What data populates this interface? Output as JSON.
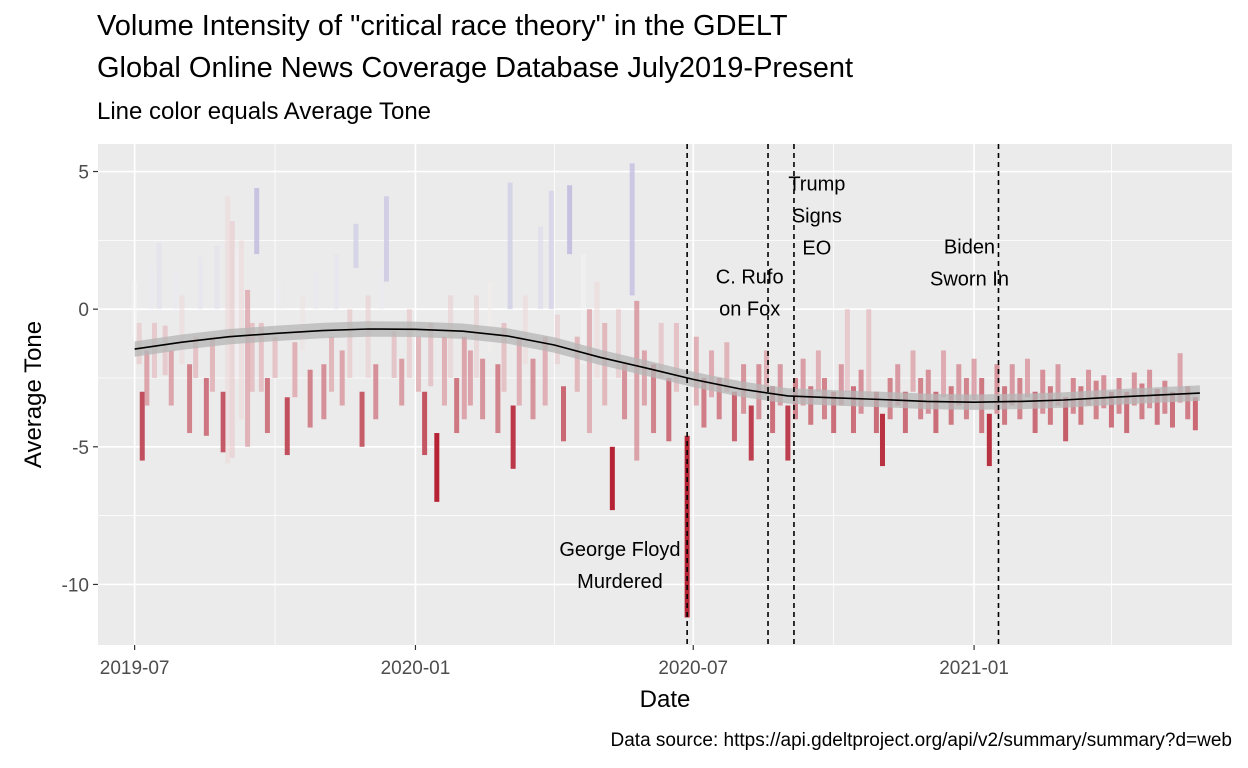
{
  "colors": {
    "panel": "#ebebeb",
    "grid_major": "#ffffff",
    "positive_tone": "#9a92cf",
    "negative_tone": "#b2182b",
    "neutral_tone": "#f7f7f7",
    "smooth_line": "#000000",
    "smooth_band": "#b5b5b5"
  },
  "chart_data": {
    "type": "bar",
    "title": "Volume Intensity of \"critical race theory\" in the GDELT\nGlobal Online News Coverage Database July2019-Present",
    "title_lines": [
      "Volume Intensity of \"critical race theory\" in the GDELT",
      "Global Online News Coverage Database July2019-Present"
    ],
    "subtitle": "Line color equals Average Tone",
    "caption": "Data source: https://api.gdeltproject.org/api/v2/summary/summary?d=web",
    "xlabel": "Date",
    "ylabel": "Average Tone",
    "xlim": [
      "2019-06-07",
      "2021-06-19"
    ],
    "ylim": [
      -12.2,
      6.0
    ],
    "x_ticks": [
      "2019-07-01",
      "2020-01-01",
      "2020-07-01",
      "2021-01-01"
    ],
    "x_tick_labels": [
      "2019-07",
      "2020-01",
      "2020-07",
      "2021-01"
    ],
    "y_ticks": [
      5,
      0,
      -5,
      -10
    ],
    "y_tick_labels": [
      "5",
      "0",
      "-5",
      "-10"
    ],
    "grid": true,
    "x_minor_ticks": [
      "2019-10-01",
      "2020-04-01",
      "2020-10-01",
      "2021-04-01"
    ],
    "y_minor_ticks": [
      2.5,
      -2.5,
      -7.5
    ],
    "bar_color_scale": {
      "low": -5,
      "mid": 0,
      "high": 5
    },
    "bars": [
      {
        "date": "2019-07-01",
        "low": -1.0,
        "high": 1.0
      },
      {
        "date": "2019-07-04",
        "low": -2.0,
        "high": -0.5
      },
      {
        "date": "2019-07-06",
        "low": -5.5,
        "high": -3.0
      },
      {
        "date": "2019-07-09",
        "low": -3.5,
        "high": -1.5
      },
      {
        "date": "2019-07-12",
        "low": 0.0,
        "high": 1.5
      },
      {
        "date": "2019-07-14",
        "low": -2.5,
        "high": -0.5
      },
      {
        "date": "2019-07-17",
        "low": 0.0,
        "high": 2.4
      },
      {
        "date": "2019-07-21",
        "low": -2.4,
        "high": -0.6
      },
      {
        "date": "2019-07-25",
        "low": -3.5,
        "high": -1.5
      },
      {
        "date": "2019-07-28",
        "low": 0.0,
        "high": 1.3
      },
      {
        "date": "2019-08-01",
        "low": -2.0,
        "high": 0.5
      },
      {
        "date": "2019-08-06",
        "low": -4.5,
        "high": -2.0
      },
      {
        "date": "2019-08-10",
        "low": -2.5,
        "high": -1.0
      },
      {
        "date": "2019-08-13",
        "low": 0.0,
        "high": 1.9
      },
      {
        "date": "2019-08-17",
        "low": -4.6,
        "high": -2.5
      },
      {
        "date": "2019-08-21",
        "low": -3.0,
        "high": -1.0
      },
      {
        "date": "2019-08-24",
        "low": 0.0,
        "high": 2.3
      },
      {
        "date": "2019-08-28",
        "low": -5.2,
        "high": -3.0
      },
      {
        "date": "2019-08-31",
        "low": -5.6,
        "high": 4.1
      },
      {
        "date": "2019-09-03",
        "low": -5.4,
        "high": 3.2
      },
      {
        "date": "2019-09-06",
        "low": -2.5,
        "high": 2.2
      },
      {
        "date": "2019-09-09",
        "low": -4.0,
        "high": 2.5
      },
      {
        "date": "2019-09-13",
        "low": -5.0,
        "high": 0.7
      },
      {
        "date": "2019-09-16",
        "low": -3.0,
        "high": -0.5
      },
      {
        "date": "2019-09-19",
        "low": 2.0,
        "high": 4.4
      },
      {
        "date": "2019-09-22",
        "low": -3.0,
        "high": -0.5
      },
      {
        "date": "2019-09-26",
        "low": -4.5,
        "high": -2.5
      },
      {
        "date": "2019-10-01",
        "low": -2.5,
        "high": -1.0
      },
      {
        "date": "2019-10-04",
        "low": 0.0,
        "high": 1.0
      },
      {
        "date": "2019-10-09",
        "low": -5.3,
        "high": -3.2
      },
      {
        "date": "2019-10-14",
        "low": -3.2,
        "high": -1.2
      },
      {
        "date": "2019-10-19",
        "low": -1.5,
        "high": 0.5
      },
      {
        "date": "2019-10-24",
        "low": -4.3,
        "high": -2.2
      },
      {
        "date": "2019-10-28",
        "low": 0.0,
        "high": 1.4
      },
      {
        "date": "2019-11-02",
        "low": -4.0,
        "high": -2.0
      },
      {
        "date": "2019-11-07",
        "low": -3.0,
        "high": -1.0
      },
      {
        "date": "2019-11-10",
        "low": 0.0,
        "high": 2.0
      },
      {
        "date": "2019-11-14",
        "low": -3.5,
        "high": -1.5
      },
      {
        "date": "2019-11-19",
        "low": -2.5,
        "high": 0.0
      },
      {
        "date": "2019-11-23",
        "low": 1.5,
        "high": 3.1
      },
      {
        "date": "2019-11-27",
        "low": -5.0,
        "high": -3.0
      },
      {
        "date": "2019-12-01",
        "low": -2.5,
        "high": 0.5
      },
      {
        "date": "2019-12-06",
        "low": -4.0,
        "high": -2.0
      },
      {
        "date": "2019-12-10",
        "low": 0.0,
        "high": 1.5
      },
      {
        "date": "2019-12-13",
        "low": 1.0,
        "high": 4.1
      },
      {
        "date": "2019-12-18",
        "low": -2.5,
        "high": -0.8
      },
      {
        "date": "2019-12-23",
        "low": -3.5,
        "high": -1.8
      },
      {
        "date": "2019-12-28",
        "low": -2.5,
        "high": 0.0
      },
      {
        "date": "2020-01-03",
        "low": -3.0,
        "high": -1.0
      },
      {
        "date": "2020-01-07",
        "low": -5.3,
        "high": -3.0
      },
      {
        "date": "2020-01-11",
        "low": -2.8,
        "high": -0.5
      },
      {
        "date": "2020-01-15",
        "low": -7.0,
        "high": -4.5
      },
      {
        "date": "2020-01-20",
        "low": -3.5,
        "high": -1.0
      },
      {
        "date": "2020-01-24",
        "low": -2.5,
        "high": 0.5
      },
      {
        "date": "2020-01-28",
        "low": -4.5,
        "high": -2.5
      },
      {
        "date": "2020-02-02",
        "low": -4.0,
        "high": -1.0
      },
      {
        "date": "2020-02-06",
        "low": -3.5,
        "high": -1.5
      },
      {
        "date": "2020-02-10",
        "low": -2.5,
        "high": 0.5
      },
      {
        "date": "2020-02-14",
        "low": -4.0,
        "high": -1.8
      },
      {
        "date": "2020-02-19",
        "low": -1.5,
        "high": 1.0
      },
      {
        "date": "2020-02-24",
        "low": -4.5,
        "high": -2.0
      },
      {
        "date": "2020-02-28",
        "low": -3.0,
        "high": -0.5
      },
      {
        "date": "2020-03-03",
        "low": 0.0,
        "high": 4.6
      },
      {
        "date": "2020-03-05",
        "low": -5.8,
        "high": -3.5
      },
      {
        "date": "2020-03-09",
        "low": -3.5,
        "high": -1.0
      },
      {
        "date": "2020-03-13",
        "low": -2.0,
        "high": 0.5
      },
      {
        "date": "2020-03-18",
        "low": -4.0,
        "high": -1.8
      },
      {
        "date": "2020-03-23",
        "low": 0.0,
        "high": 3.0
      },
      {
        "date": "2020-03-26",
        "low": -3.5,
        "high": -1.0
      },
      {
        "date": "2020-03-30",
        "low": 0.0,
        "high": 4.3
      },
      {
        "date": "2020-04-03",
        "low": -2.0,
        "high": -0.2
      },
      {
        "date": "2020-04-07",
        "low": -4.8,
        "high": -2.8
      },
      {
        "date": "2020-04-11",
        "low": 2.0,
        "high": 4.5
      },
      {
        "date": "2020-04-16",
        "low": -3.0,
        "high": -1.0
      },
      {
        "date": "2020-04-20",
        "low": -2.0,
        "high": 2.0
      },
      {
        "date": "2020-04-24",
        "low": -4.5,
        "high": 0.0
      },
      {
        "date": "2020-04-29",
        "low": -2.5,
        "high": 1.0
      },
      {
        "date": "2020-05-04",
        "low": -3.5,
        "high": -0.5
      },
      {
        "date": "2020-05-09",
        "low": -7.3,
        "high": -5.0
      },
      {
        "date": "2020-05-13",
        "low": -2.5,
        "high": 0.0
      },
      {
        "date": "2020-05-17",
        "low": -4.0,
        "high": -2.0
      },
      {
        "date": "2020-05-22",
        "low": 0.5,
        "high": 5.3
      },
      {
        "date": "2020-05-25",
        "low": -5.5,
        "high": 0.3
      },
      {
        "date": "2020-05-30",
        "low": -3.5,
        "high": -1.5
      },
      {
        "date": "2020-06-05",
        "low": -4.5,
        "high": -2.0
      },
      {
        "date": "2020-06-10",
        "low": -2.5,
        "high": -0.5
      },
      {
        "date": "2020-06-15",
        "low": -4.8,
        "high": -2.5
      },
      {
        "date": "2020-06-20",
        "low": -3.0,
        "high": -0.5
      },
      {
        "date": "2020-06-27",
        "low": -11.2,
        "high": -4.6
      },
      {
        "date": "2020-07-03",
        "low": -3.5,
        "high": -1.0
      },
      {
        "date": "2020-07-08",
        "low": -4.3,
        "high": -2.5
      },
      {
        "date": "2020-07-13",
        "low": -3.2,
        "high": -1.5
      },
      {
        "date": "2020-07-18",
        "low": -4.0,
        "high": -2.5
      },
      {
        "date": "2020-07-23",
        "low": -3.0,
        "high": -1.2
      },
      {
        "date": "2020-07-28",
        "low": -4.8,
        "high": -3.0
      },
      {
        "date": "2020-08-03",
        "low": -3.8,
        "high": -2.0
      },
      {
        "date": "2020-08-08",
        "low": -5.5,
        "high": -3.5
      },
      {
        "date": "2020-08-13",
        "low": -4.0,
        "high": -2.0
      },
      {
        "date": "2020-08-18",
        "low": -3.0,
        "high": -1.5
      },
      {
        "date": "2020-08-22",
        "low": -4.5,
        "high": -2.8
      },
      {
        "date": "2020-08-27",
        "low": -3.5,
        "high": -2.0
      },
      {
        "date": "2020-09-01",
        "low": -5.5,
        "high": -3.5
      },
      {
        "date": "2020-09-06",
        "low": -4.0,
        "high": -2.5
      },
      {
        "date": "2020-09-11",
        "low": -3.5,
        "high": -1.8
      },
      {
        "date": "2020-09-16",
        "low": -4.2,
        "high": -2.8
      },
      {
        "date": "2020-09-21",
        "low": -3.0,
        "high": -1.5
      },
      {
        "date": "2020-09-25",
        "low": -4.0,
        "high": -2.5
      },
      {
        "date": "2020-10-01",
        "low": -4.5,
        "high": -3.0
      },
      {
        "date": "2020-10-06",
        "low": -3.5,
        "high": -2.0
      },
      {
        "date": "2020-10-10",
        "low": -3.0,
        "high": 0.0
      },
      {
        "date": "2020-10-14",
        "low": -4.5,
        "high": -2.8
      },
      {
        "date": "2020-10-19",
        "low": -3.8,
        "high": -2.2
      },
      {
        "date": "2020-10-24",
        "low": -3.2,
        "high": 0.0
      },
      {
        "date": "2020-10-29",
        "low": -4.5,
        "high": -3.0
      },
      {
        "date": "2020-11-02",
        "low": -5.7,
        "high": -3.8
      },
      {
        "date": "2020-11-07",
        "low": -4.0,
        "high": -2.5
      },
      {
        "date": "2020-11-12",
        "low": -3.5,
        "high": -2.0
      },
      {
        "date": "2020-11-17",
        "low": -4.5,
        "high": -3.0
      },
      {
        "date": "2020-11-22",
        "low": -3.0,
        "high": -1.5
      },
      {
        "date": "2020-11-27",
        "low": -4.0,
        "high": -2.5
      },
      {
        "date": "2020-12-02",
        "low": -3.8,
        "high": -2.2
      },
      {
        "date": "2020-12-07",
        "low": -4.5,
        "high": -3.0
      },
      {
        "date": "2020-12-12",
        "low": -3.2,
        "high": -1.5
      },
      {
        "date": "2020-12-17",
        "low": -4.2,
        "high": -2.8
      },
      {
        "date": "2020-12-22",
        "low": -3.5,
        "high": -2.0
      },
      {
        "date": "2020-12-27",
        "low": -4.0,
        "high": -2.5
      },
      {
        "date": "2021-01-01",
        "low": -3.3,
        "high": -1.8
      },
      {
        "date": "2021-01-06",
        "low": -4.5,
        "high": -2.5
      },
      {
        "date": "2021-01-11",
        "low": -5.7,
        "high": -3.8
      },
      {
        "date": "2021-01-16",
        "low": -3.8,
        "high": -2.0
      },
      {
        "date": "2021-01-21",
        "low": -4.2,
        "high": -2.8
      },
      {
        "date": "2021-01-26",
        "low": -3.5,
        "high": -2.0
      },
      {
        "date": "2021-01-31",
        "low": -4.0,
        "high": -2.5
      },
      {
        "date": "2021-02-05",
        "low": -3.2,
        "high": -1.8
      },
      {
        "date": "2021-02-10",
        "low": -4.5,
        "high": -3.0
      },
      {
        "date": "2021-02-15",
        "low": -3.8,
        "high": -2.2
      },
      {
        "date": "2021-02-20",
        "low": -4.2,
        "high": -2.8
      },
      {
        "date": "2021-02-25",
        "low": -3.5,
        "high": -2.0
      },
      {
        "date": "2021-03-02",
        "low": -4.8,
        "high": -3.2
      },
      {
        "date": "2021-03-07",
        "low": -3.8,
        "high": -2.5
      },
      {
        "date": "2021-03-12",
        "low": -4.2,
        "high": -2.8
      },
      {
        "date": "2021-03-17",
        "low": -3.5,
        "high": -2.2
      },
      {
        "date": "2021-03-22",
        "low": -4.0,
        "high": -2.6
      },
      {
        "date": "2021-03-27",
        "low": -3.6,
        "high": -2.4
      },
      {
        "date": "2021-04-01",
        "low": -4.3,
        "high": -3.0
      },
      {
        "date": "2021-04-06",
        "low": -3.8,
        "high": -2.5
      },
      {
        "date": "2021-04-11",
        "low": -4.5,
        "high": -3.0
      },
      {
        "date": "2021-04-16",
        "low": -3.5,
        "high": -2.3
      },
      {
        "date": "2021-04-21",
        "low": -4.0,
        "high": -2.7
      },
      {
        "date": "2021-04-26",
        "low": -3.6,
        "high": -2.2
      },
      {
        "date": "2021-05-01",
        "low": -4.2,
        "high": -2.9
      },
      {
        "date": "2021-05-06",
        "low": -3.8,
        "high": -2.6
      },
      {
        "date": "2021-05-11",
        "low": -4.3,
        "high": -3.0
      },
      {
        "date": "2021-05-16",
        "low": -3.4,
        "high": -1.6
      },
      {
        "date": "2021-05-21",
        "low": -4.0,
        "high": -2.8
      },
      {
        "date": "2021-05-26",
        "low": -4.4,
        "high": -3.2
      }
    ],
    "smooth": {
      "x": [
        "2019-07-01",
        "2019-08-01",
        "2019-09-01",
        "2019-10-01",
        "2019-11-01",
        "2019-12-01",
        "2020-01-01",
        "2020-02-01",
        "2020-03-01",
        "2020-04-01",
        "2020-05-01",
        "2020-06-01",
        "2020-07-01",
        "2020-08-01",
        "2020-09-01",
        "2020-10-01",
        "2020-11-01",
        "2020-12-01",
        "2021-01-01",
        "2021-02-01",
        "2021-03-01",
        "2021-04-01",
        "2021-05-01",
        "2021-05-29"
      ],
      "y": [
        -1.45,
        -1.2,
        -1.0,
        -0.88,
        -0.78,
        -0.72,
        -0.73,
        -0.8,
        -0.97,
        -1.3,
        -1.75,
        -2.15,
        -2.55,
        -2.9,
        -3.15,
        -3.22,
        -3.28,
        -3.35,
        -3.38,
        -3.35,
        -3.3,
        -3.2,
        -3.12,
        -3.05
      ],
      "band_halfwidth": 0.28
    },
    "events": [
      {
        "date": "2020-06-27",
        "label": [
          "George Floyd",
          "Murdered"
        ],
        "label_x": "2020-05-14",
        "label_y": -9.3
      },
      {
        "date": "2020-08-19",
        "label": [
          "C. Rufo",
          "on Fox"
        ],
        "label_x": "2020-08-07",
        "label_y": 0.6
      },
      {
        "date": "2020-09-05",
        "label": [
          "Trump",
          "Signs",
          "EO"
        ],
        "label_x": "2020-09-20",
        "label_y": 3.4
      },
      {
        "date": "2021-01-17",
        "label": [
          "Biden",
          "Sworn In"
        ],
        "label_x": "2020-12-29",
        "label_y": 1.7
      }
    ]
  }
}
